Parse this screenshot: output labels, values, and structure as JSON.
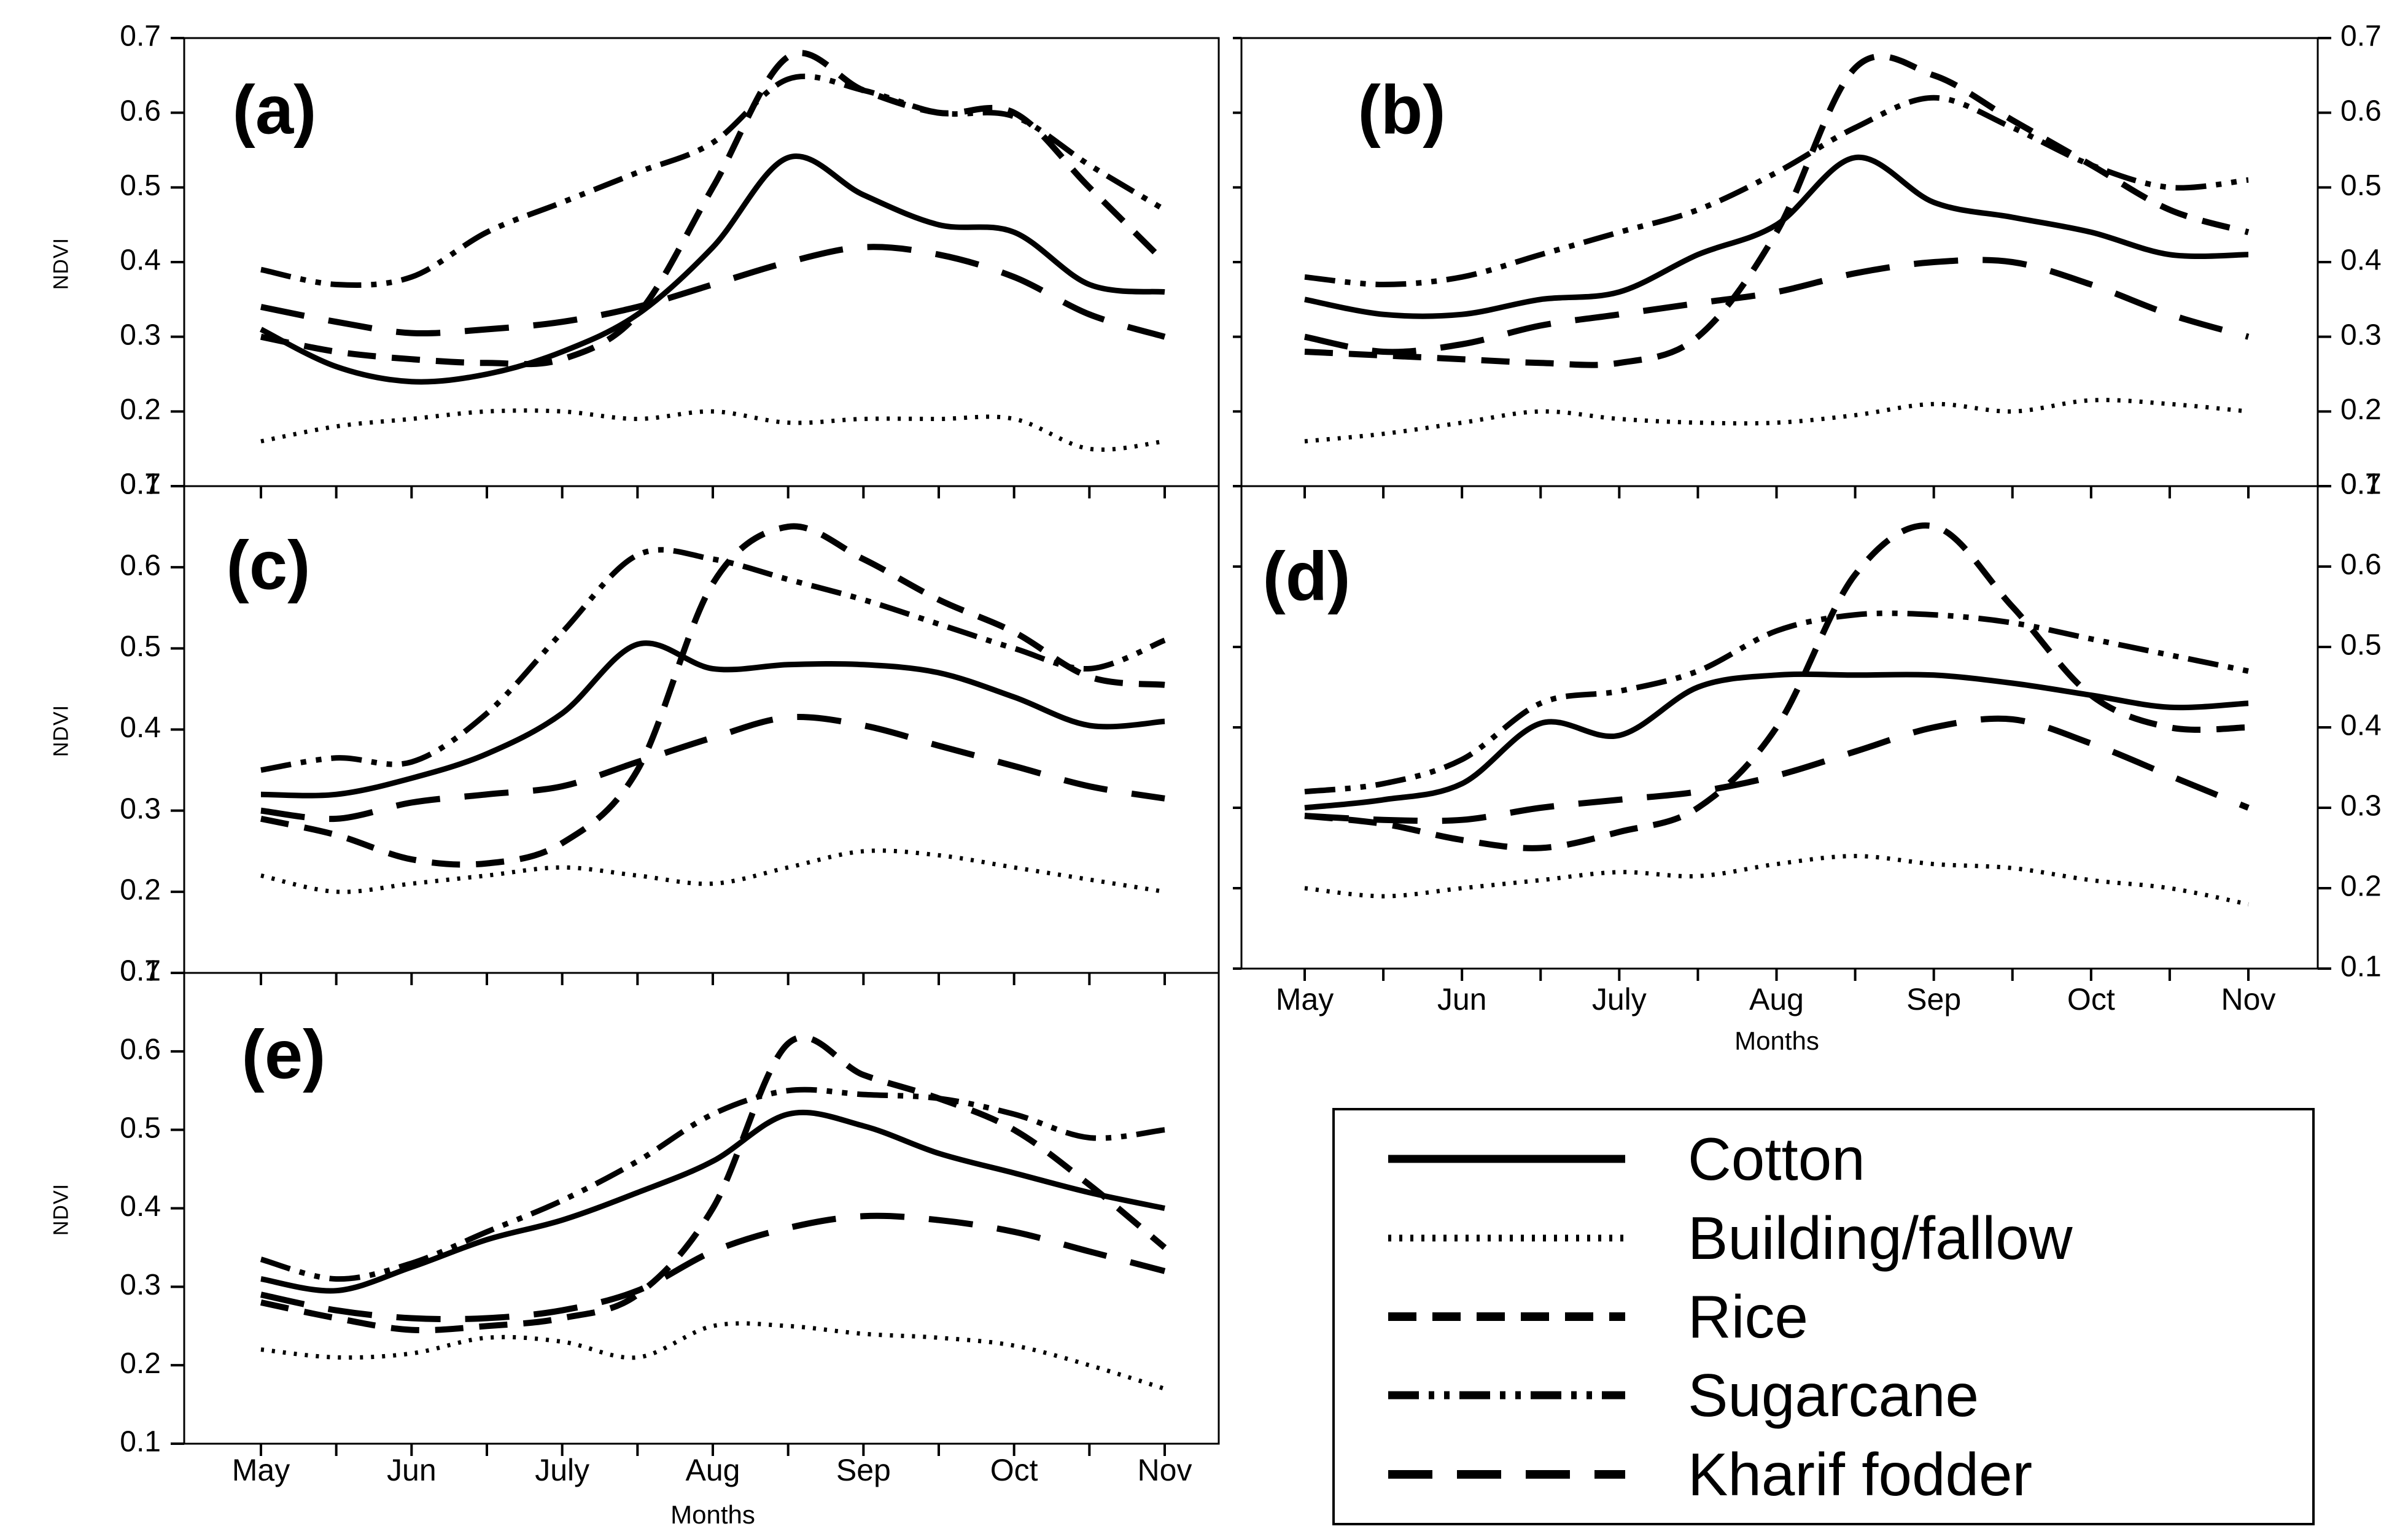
{
  "figure": {
    "background": "#ffffff",
    "ink": "#000000"
  },
  "axes": {
    "y_label": "NDVI",
    "x_label": "Months",
    "y_ticks": [
      "0.7",
      "0.6",
      "0.5",
      "0.4",
      "0.3",
      "0.2",
      "0.1"
    ],
    "months": [
      "May",
      "Jun",
      "July",
      "Aug",
      "Sep",
      "Oct",
      "Nov"
    ],
    "ylim": [
      0.1,
      0.7
    ],
    "x_resolution": "half-month samples from May to Nov (13 points per series)"
  },
  "legend": {
    "items": [
      {
        "key": "cotton",
        "label": "Cotton",
        "style": "solid"
      },
      {
        "key": "building_fallow",
        "label": "Building/fallow",
        "style": "dotted"
      },
      {
        "key": "rice",
        "label": "Rice",
        "style": "dash"
      },
      {
        "key": "sugarcane",
        "label": "Sugarcane",
        "style": "dash-dot-dot"
      },
      {
        "key": "kharif_fodder",
        "label": "Kharif fodder",
        "style": "long-dash"
      }
    ]
  },
  "chart_data": [
    {
      "id": "a",
      "type": "line",
      "title": "(a)",
      "ylim": [
        0.1,
        0.7
      ],
      "grid": false,
      "series": [
        {
          "key": "cotton",
          "name": "Cotton",
          "style": "solid",
          "values": [
            0.31,
            0.26,
            0.24,
            0.25,
            0.28,
            0.33,
            0.42,
            0.54,
            0.49,
            0.45,
            0.44,
            0.37,
            0.36
          ]
        },
        {
          "key": "building_fallow",
          "name": "Building/fallow",
          "style": "dotted",
          "values": [
            0.16,
            0.18,
            0.19,
            0.2,
            0.2,
            0.19,
            0.2,
            0.185,
            0.19,
            0.19,
            0.19,
            0.15,
            0.16
          ]
        },
        {
          "key": "rice",
          "name": "Rice",
          "style": "dash",
          "values": [
            0.3,
            0.28,
            0.27,
            0.265,
            0.27,
            0.33,
            0.5,
            0.675,
            0.63,
            0.6,
            0.6,
            0.5,
            0.4
          ]
        },
        {
          "key": "sugarcane",
          "name": "Sugarcane",
          "style": "dash-dot-dot",
          "values": [
            0.39,
            0.37,
            0.38,
            0.44,
            0.48,
            0.52,
            0.56,
            0.645,
            0.63,
            0.6,
            0.595,
            0.53,
            0.47
          ]
        },
        {
          "key": "kharif_fodder",
          "name": "Kharif fodder",
          "style": "long-dash",
          "values": [
            0.34,
            0.32,
            0.305,
            0.31,
            0.32,
            0.34,
            0.37,
            0.4,
            0.42,
            0.41,
            0.38,
            0.33,
            0.3
          ]
        }
      ]
    },
    {
      "id": "b",
      "type": "line",
      "title": "(b)",
      "ylim": [
        0.1,
        0.7
      ],
      "grid": false,
      "series": [
        {
          "key": "cotton",
          "name": "Cotton",
          "style": "solid",
          "values": [
            0.35,
            0.33,
            0.33,
            0.35,
            0.36,
            0.41,
            0.45,
            0.54,
            0.48,
            0.46,
            0.44,
            0.41,
            0.41
          ]
        },
        {
          "key": "building_fallow",
          "name": "Building/fallow",
          "style": "dotted",
          "values": [
            0.16,
            0.17,
            0.185,
            0.2,
            0.19,
            0.185,
            0.185,
            0.195,
            0.21,
            0.2,
            0.215,
            0.21,
            0.2
          ]
        },
        {
          "key": "rice",
          "name": "Rice",
          "style": "dash",
          "values": [
            0.28,
            0.275,
            0.27,
            0.265,
            0.265,
            0.3,
            0.44,
            0.66,
            0.65,
            0.59,
            0.53,
            0.47,
            0.44
          ]
        },
        {
          "key": "sugarcane",
          "name": "Sugarcane",
          "style": "dash-dot-dot",
          "values": [
            0.38,
            0.37,
            0.38,
            0.41,
            0.44,
            0.47,
            0.52,
            0.58,
            0.62,
            0.58,
            0.53,
            0.5,
            0.51
          ]
        },
        {
          "key": "kharif_fodder",
          "name": "Kharif fodder",
          "style": "long-dash",
          "values": [
            0.3,
            0.28,
            0.29,
            0.315,
            0.33,
            0.345,
            0.36,
            0.385,
            0.4,
            0.4,
            0.37,
            0.33,
            0.3
          ]
        }
      ]
    },
    {
      "id": "c",
      "type": "line",
      "title": "(c)",
      "ylim": [
        0.1,
        0.7
      ],
      "grid": false,
      "series": [
        {
          "key": "cotton",
          "name": "Cotton",
          "style": "solid",
          "values": [
            0.32,
            0.32,
            0.34,
            0.37,
            0.42,
            0.505,
            0.475,
            0.48,
            0.48,
            0.47,
            0.44,
            0.405,
            0.41
          ]
        },
        {
          "key": "building_fallow",
          "name": "Building/fallow",
          "style": "dotted",
          "values": [
            0.22,
            0.2,
            0.21,
            0.22,
            0.23,
            0.22,
            0.21,
            0.23,
            0.25,
            0.245,
            0.23,
            0.215,
            0.2
          ]
        },
        {
          "key": "rice",
          "name": "Rice",
          "style": "dash",
          "values": [
            0.29,
            0.27,
            0.24,
            0.235,
            0.26,
            0.35,
            0.58,
            0.65,
            0.61,
            0.56,
            0.52,
            0.465,
            0.455
          ]
        },
        {
          "key": "sugarcane",
          "name": "Sugarcane",
          "style": "dash-dot-dot",
          "values": [
            0.35,
            0.365,
            0.36,
            0.42,
            0.52,
            0.615,
            0.61,
            0.585,
            0.56,
            0.53,
            0.5,
            0.475,
            0.51
          ]
        },
        {
          "key": "kharif_fodder",
          "name": "Kharif fodder",
          "style": "long-dash",
          "values": [
            0.3,
            0.29,
            0.31,
            0.32,
            0.33,
            0.36,
            0.39,
            0.415,
            0.405,
            0.38,
            0.355,
            0.33,
            0.315
          ]
        }
      ]
    },
    {
      "id": "d",
      "type": "line",
      "title": "(d)",
      "ylim": [
        0.1,
        0.7
      ],
      "grid": false,
      "series": [
        {
          "key": "cotton",
          "name": "Cotton",
          "style": "solid",
          "values": [
            0.3,
            0.31,
            0.33,
            0.405,
            0.39,
            0.45,
            0.465,
            0.465,
            0.465,
            0.455,
            0.44,
            0.425,
            0.43
          ]
        },
        {
          "key": "building_fallow",
          "name": "Building/fallow",
          "style": "dotted",
          "values": [
            0.2,
            0.19,
            0.2,
            0.21,
            0.22,
            0.215,
            0.23,
            0.24,
            0.23,
            0.225,
            0.21,
            0.2,
            0.18
          ]
        },
        {
          "key": "rice",
          "name": "Rice",
          "style": "dash",
          "values": [
            0.29,
            0.28,
            0.26,
            0.25,
            0.27,
            0.3,
            0.4,
            0.59,
            0.65,
            0.55,
            0.44,
            0.4,
            0.4
          ]
        },
        {
          "key": "sugarcane",
          "name": "Sugarcane",
          "style": "dash-dot-dot",
          "values": [
            0.32,
            0.33,
            0.36,
            0.43,
            0.445,
            0.47,
            0.52,
            0.54,
            0.54,
            0.53,
            0.51,
            0.49,
            0.47
          ]
        },
        {
          "key": "kharif_fodder",
          "name": "Kharif fodder",
          "style": "long-dash",
          "values": [
            0.29,
            0.285,
            0.285,
            0.3,
            0.31,
            0.32,
            0.34,
            0.37,
            0.4,
            0.41,
            0.38,
            0.34,
            0.3
          ]
        }
      ]
    },
    {
      "id": "e",
      "type": "line",
      "title": "(e)",
      "ylim": [
        0.1,
        0.7
      ],
      "grid": false,
      "series": [
        {
          "key": "cotton",
          "name": "Cotton",
          "style": "solid",
          "values": [
            0.31,
            0.295,
            0.325,
            0.36,
            0.385,
            0.42,
            0.46,
            0.52,
            0.505,
            0.47,
            0.445,
            0.42,
            0.4
          ]
        },
        {
          "key": "building_fallow",
          "name": "Building/fallow",
          "style": "dotted",
          "values": [
            0.22,
            0.21,
            0.215,
            0.235,
            0.23,
            0.21,
            0.25,
            0.25,
            0.24,
            0.235,
            0.225,
            0.2,
            0.17
          ]
        },
        {
          "key": "rice",
          "name": "Rice",
          "style": "dash",
          "values": [
            0.28,
            0.26,
            0.245,
            0.25,
            0.26,
            0.29,
            0.4,
            0.61,
            0.57,
            0.54,
            0.5,
            0.43,
            0.35
          ]
        },
        {
          "key": "sugarcane",
          "name": "Sugarcane",
          "style": "dash-dot-dot",
          "values": [
            0.335,
            0.31,
            0.33,
            0.37,
            0.41,
            0.46,
            0.52,
            0.55,
            0.545,
            0.54,
            0.52,
            0.49,
            0.5
          ]
        },
        {
          "key": "kharif_fodder",
          "name": "Kharif fodder",
          "style": "long-dash",
          "values": [
            0.29,
            0.27,
            0.26,
            0.26,
            0.27,
            0.295,
            0.345,
            0.375,
            0.39,
            0.385,
            0.37,
            0.345,
            0.32
          ]
        }
      ]
    }
  ]
}
